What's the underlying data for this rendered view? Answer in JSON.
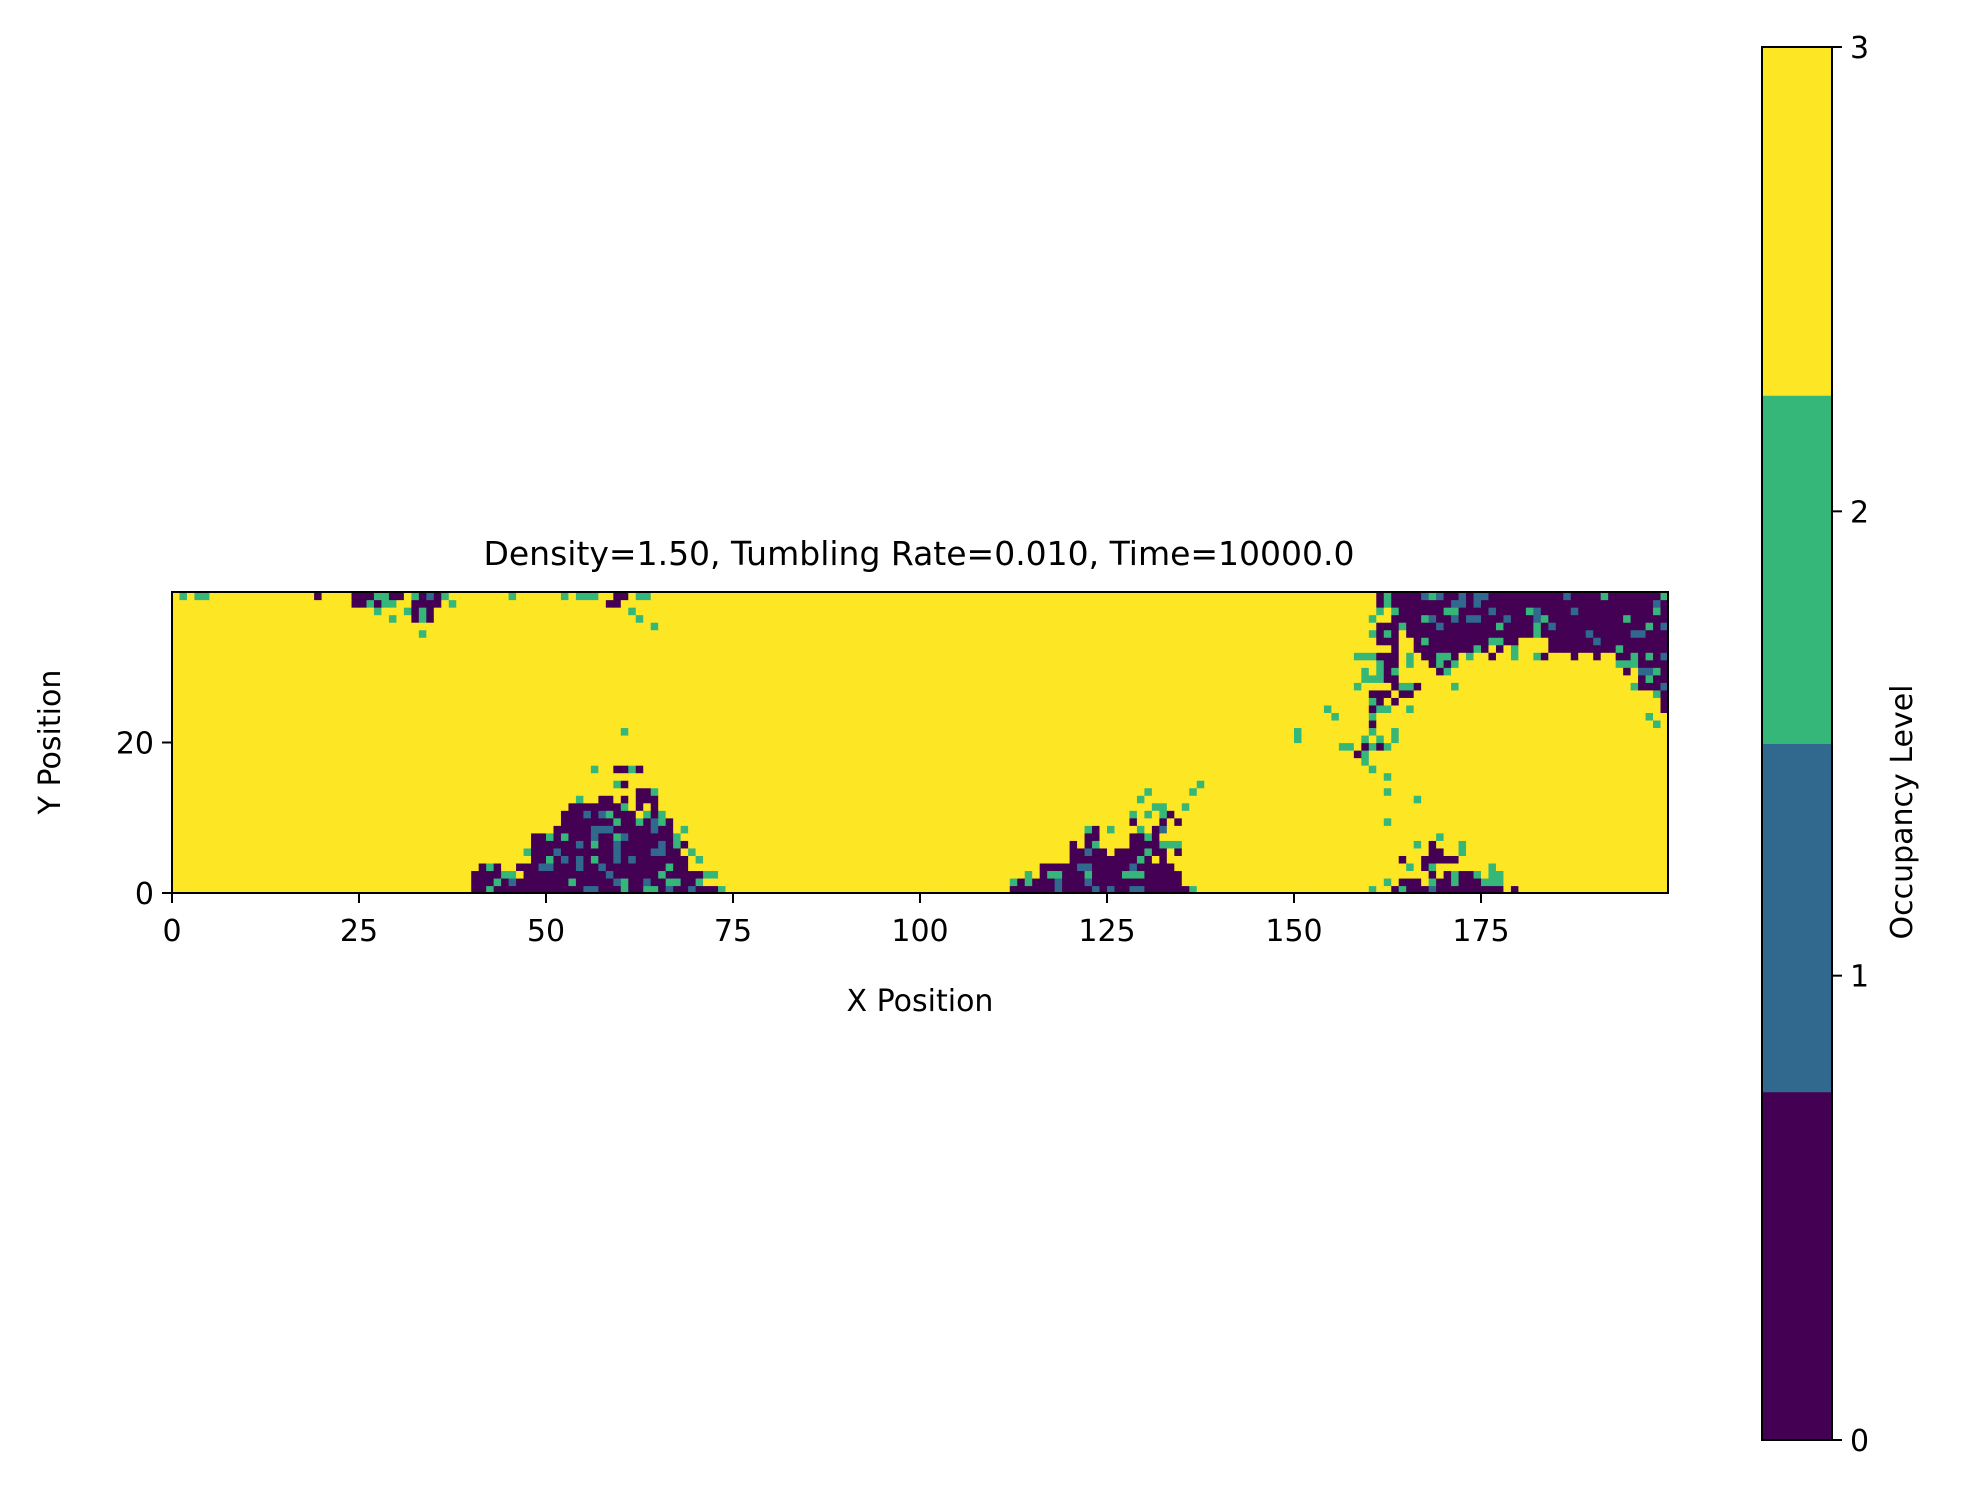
{
  "chart_data": {
    "type": "heatmap",
    "title": "Density=1.50, Tumbling Rate=0.010, Time=10000.0",
    "xlabel": "X Position",
    "ylabel": "Y Position",
    "xlim": [
      0,
      200
    ],
    "ylim": [
      0,
      40
    ],
    "x_ticks": [
      0,
      25,
      50,
      75,
      100,
      125,
      150,
      175
    ],
    "y_ticks": [
      0,
      20
    ],
    "grid": false,
    "colorbar": {
      "label": "Occupancy Level",
      "ticks": [
        0,
        1,
        2,
        3
      ],
      "levels": [
        {
          "value": 0,
          "color": "#440154"
        },
        {
          "value": 1,
          "color": "#31688e"
        },
        {
          "value": 2,
          "color": "#35b779"
        },
        {
          "value": 3,
          "color": "#fde725"
        }
      ]
    },
    "field": {
      "nx": 200,
      "ny": 40,
      "dominant_values": [
        0,
        3
      ],
      "sparse_values_in_empty_regions": [
        1,
        2
      ],
      "dense_clusters_value3": [
        {
          "x": 10,
          "y": 30
        },
        {
          "x": 48,
          "y": 28
        },
        {
          "x": 82,
          "y": 34
        },
        {
          "x": 102,
          "y": 35
        },
        {
          "x": 125,
          "y": 30
        },
        {
          "x": 145,
          "y": 36
        },
        {
          "x": 30,
          "y": 12
        },
        {
          "x": 6,
          "y": 8
        },
        {
          "x": 80,
          "y": 12
        },
        {
          "x": 97,
          "y": 8
        },
        {
          "x": 112,
          "y": 18
        },
        {
          "x": 148,
          "y": 5
        },
        {
          "x": 180,
          "y": 20
        },
        {
          "x": 196,
          "y": 6
        }
      ]
    }
  }
}
